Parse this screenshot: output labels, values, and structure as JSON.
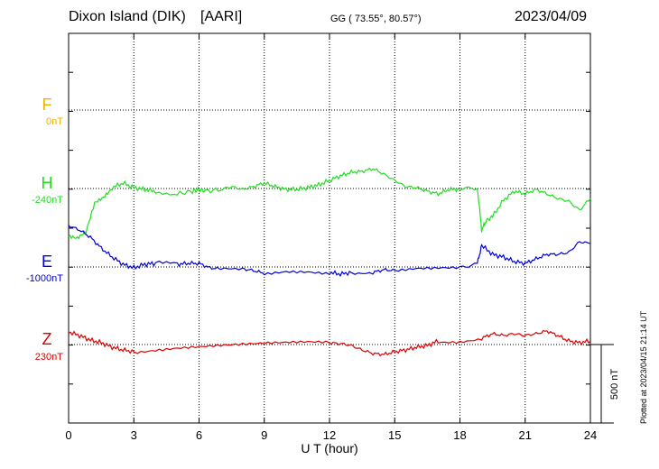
{
  "header": {
    "station": "Dixon Island (DIK)",
    "institute": "[AARI]",
    "coords": "GG ( 73.55°,  80.57°)",
    "date": "2023/04/09"
  },
  "plotted_note": "Plotted at 2023/04/15 21:14 UT",
  "chart_data": {
    "type": "line",
    "xlabel": "U T (hour)",
    "xlim": [
      0,
      24
    ],
    "x_ticks": [
      0,
      3,
      6,
      9,
      12,
      15,
      18,
      21,
      24
    ],
    "scale_bar_label": "500 nT",
    "channels": [
      {
        "name": "F",
        "baseline_label": "0nT",
        "color": "#f0b000",
        "data": []
      },
      {
        "name": "H",
        "baseline_label": "-240nT",
        "color": "#22dd22",
        "data": [
          [
            0,
            262
          ],
          [
            0.4,
            265
          ],
          [
            0.8,
            258
          ],
          [
            1.2,
            225
          ],
          [
            1.6,
            218
          ],
          [
            2.0,
            208
          ],
          [
            2.5,
            203
          ],
          [
            3.0,
            208
          ],
          [
            3.5,
            210
          ],
          [
            4,
            212
          ],
          [
            5,
            215
          ],
          [
            5.7,
            212
          ],
          [
            6,
            210
          ],
          [
            6.3,
            212
          ],
          [
            7,
            210
          ],
          [
            7.5,
            207
          ],
          [
            8,
            210
          ],
          [
            8.5,
            207
          ],
          [
            9,
            203
          ],
          [
            9.5,
            207
          ],
          [
            10,
            210
          ],
          [
            10.5,
            210
          ],
          [
            11,
            208
          ],
          [
            11.5,
            205
          ],
          [
            12,
            200
          ],
          [
            12.5,
            195
          ],
          [
            13,
            191
          ],
          [
            13.5,
            190
          ],
          [
            14,
            187
          ],
          [
            14.5,
            193
          ],
          [
            15,
            200
          ],
          [
            15.5,
            207
          ],
          [
            16,
            208
          ],
          [
            16.5,
            212
          ],
          [
            17,
            215
          ],
          [
            17.5,
            210
          ],
          [
            18,
            210
          ],
          [
            18.8,
            208
          ],
          [
            19.0,
            255
          ],
          [
            19.2,
            245
          ],
          [
            19.5,
            240
          ],
          [
            20,
            222
          ],
          [
            20.5,
            212
          ],
          [
            21,
            215
          ],
          [
            21.5,
            210
          ],
          [
            22,
            215
          ],
          [
            22.5,
            220
          ],
          [
            23,
            223
          ],
          [
            23.5,
            233
          ],
          [
            24,
            220
          ]
        ]
      },
      {
        "name": "E",
        "baseline_label": "-1000nT",
        "color": "#0000dd",
        "data": [
          [
            0,
            250
          ],
          [
            0.5,
            255
          ],
          [
            1,
            263
          ],
          [
            1.5,
            275
          ],
          [
            2,
            285
          ],
          [
            2.5,
            293
          ],
          [
            3,
            297
          ],
          [
            3.5,
            293
          ],
          [
            4,
            292
          ],
          [
            5,
            293
          ],
          [
            5.5,
            292
          ],
          [
            6,
            292
          ],
          [
            6.5,
            297
          ],
          [
            7,
            298
          ],
          [
            8,
            298
          ],
          [
            8.5,
            300
          ],
          [
            9,
            303
          ],
          [
            10,
            300
          ],
          [
            11,
            300
          ],
          [
            12,
            302
          ],
          [
            12.5,
            304
          ],
          [
            13,
            302
          ],
          [
            14,
            302
          ],
          [
            14.5,
            299
          ],
          [
            15,
            300
          ],
          [
            16,
            298
          ],
          [
            17,
            298
          ],
          [
            18,
            298
          ],
          [
            18.8,
            292
          ],
          [
            19.0,
            272
          ],
          [
            19.5,
            282
          ],
          [
            20,
            285
          ],
          [
            20.5,
            290
          ],
          [
            21,
            292
          ],
          [
            21.5,
            287
          ],
          [
            22,
            282
          ],
          [
            22.5,
            282
          ],
          [
            23,
            280
          ],
          [
            23.5,
            268
          ],
          [
            24,
            270
          ]
        ]
      },
      {
        "name": "Z",
        "baseline_label": "230nT",
        "color": "#dd0000",
        "data": [
          [
            0,
            368
          ],
          [
            0.5,
            372
          ],
          [
            1,
            377
          ],
          [
            1.5,
            380
          ],
          [
            2,
            385
          ],
          [
            2.5,
            388
          ],
          [
            3,
            390
          ],
          [
            4,
            388
          ],
          [
            5,
            386
          ],
          [
            6,
            385
          ],
          [
            7,
            384
          ],
          [
            8,
            383
          ],
          [
            9,
            382
          ],
          [
            10,
            381
          ],
          [
            11,
            380
          ],
          [
            12,
            380
          ],
          [
            12.5,
            381
          ],
          [
            13,
            383
          ],
          [
            13.5,
            388
          ],
          [
            14,
            392
          ],
          [
            14.5,
            393
          ],
          [
            15,
            390
          ],
          [
            15.5,
            388
          ],
          [
            16,
            385
          ],
          [
            16.5,
            383
          ],
          [
            17,
            378
          ],
          [
            18,
            378
          ],
          [
            19,
            375
          ],
          [
            19.5,
            370
          ],
          [
            20,
            372
          ],
          [
            20.5,
            370
          ],
          [
            21,
            372
          ],
          [
            21.5,
            370
          ],
          [
            22,
            367
          ],
          [
            22.5,
            372
          ],
          [
            23,
            378
          ],
          [
            23.5,
            380
          ],
          [
            24,
            378
          ]
        ]
      }
    ]
  }
}
